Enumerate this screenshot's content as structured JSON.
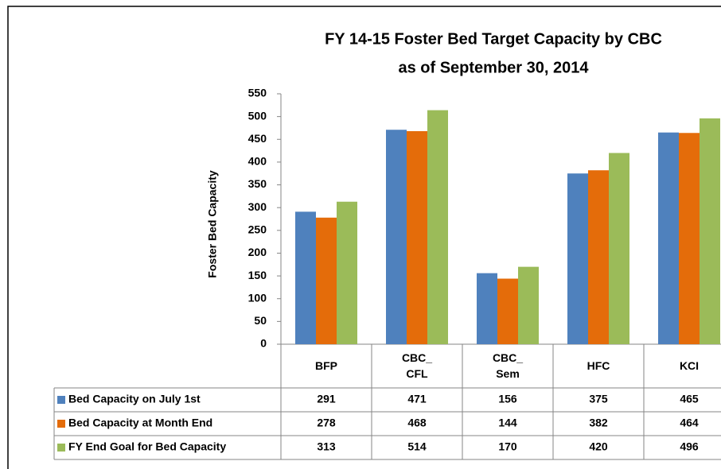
{
  "chart_data": {
    "type": "bar",
    "title": "FY 14-15 Foster Bed Target Capacity by CBC",
    "subtitle": "as of September 30, 2014",
    "y_label": "Foster Bed Capacity",
    "categories": [
      "BFP",
      "CBC_ CFL",
      "CBC_ Sem",
      "HFC",
      "KCI"
    ],
    "series": [
      {
        "name": "Bed Capacity on July 1st",
        "color": "#4f81bd",
        "values": [
          291,
          471,
          156,
          375,
          465
        ]
      },
      {
        "name": "Bed Capacity at Month End",
        "color": "#e46c0a",
        "values": [
          278,
          468,
          144,
          382,
          464
        ]
      },
      {
        "name": "FY End Goal for Bed Capacity",
        "color": "#9bbb59",
        "values": [
          313,
          514,
          170,
          420,
          496
        ]
      }
    ],
    "ylim": [
      0,
      550
    ],
    "yticks": [
      0,
      50,
      100,
      150,
      200,
      250,
      300,
      350,
      400,
      450,
      500,
      550
    ],
    "grid": false
  }
}
